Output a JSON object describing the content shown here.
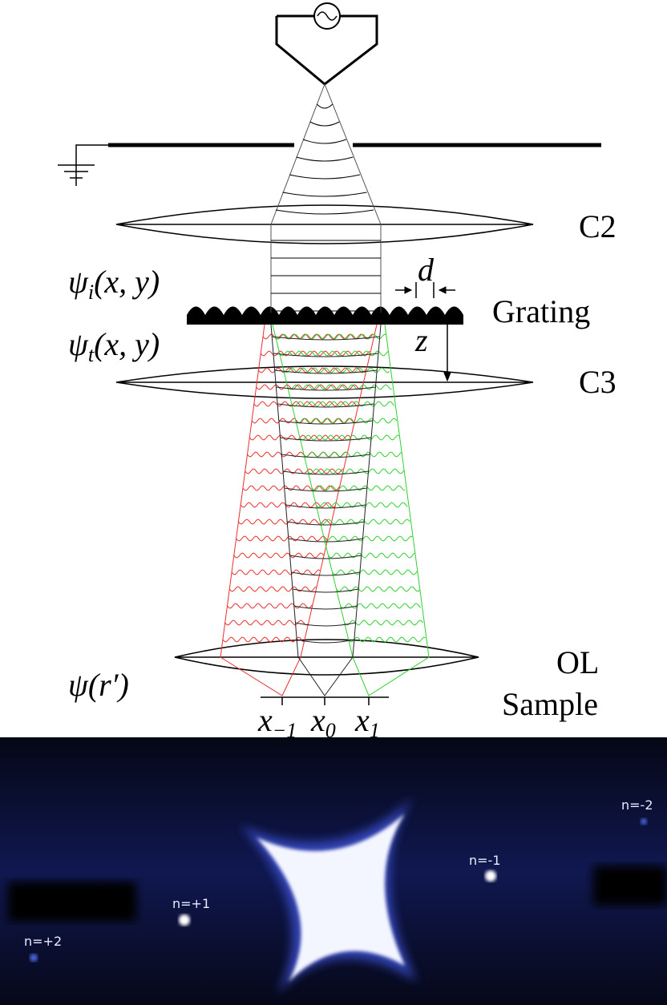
{
  "labels": {
    "c2": "C2",
    "grating": "Grating",
    "c3": "C3",
    "ol": "OL",
    "sample": "Sample"
  },
  "symbols": {
    "psi_i": {
      "symbol": "ψ",
      "sub": "i",
      "args": "(x, y)"
    },
    "psi_t": {
      "symbol": "ψ",
      "sub": "t",
      "args": "(x, y)"
    },
    "psi_r": {
      "symbol": "ψ",
      "args": "(r′)"
    },
    "d": "d",
    "z": "z",
    "x_minus1": {
      "symbol": "x",
      "sub": "−1"
    },
    "x_0": {
      "symbol": "x",
      "sub": "0"
    },
    "x_1": {
      "symbol": "x",
      "sub": "1"
    }
  },
  "diffraction": {
    "orders": [
      "n=+2",
      "n=+1",
      "n=-1",
      "n=-2"
    ]
  }
}
